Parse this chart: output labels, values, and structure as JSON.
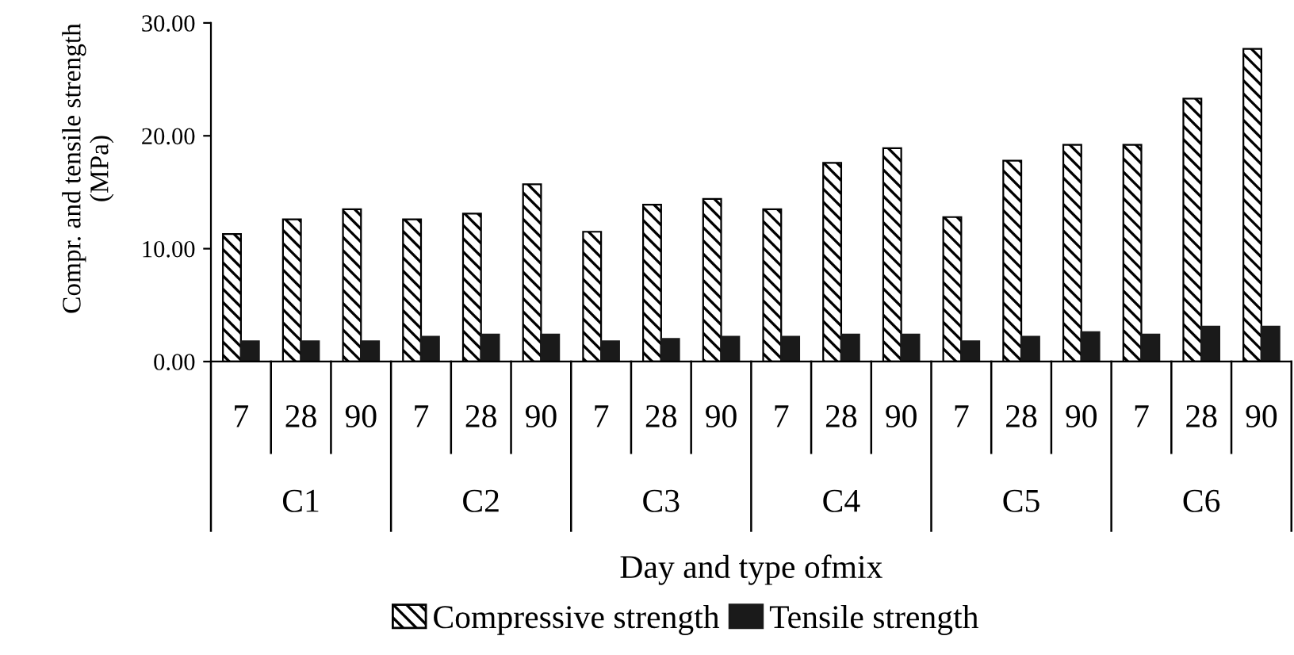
{
  "chart_data": {
    "type": "bar",
    "xlabel": "Day and type ofmix",
    "ylabel": "Compr. and tensile strength\n(MPa)",
    "categories": [
      "7",
      "28",
      "90",
      "7",
      "28",
      "90",
      "7",
      "28",
      "90",
      "7",
      "28",
      "90",
      "7",
      "28",
      "90",
      "7",
      "28",
      "90"
    ],
    "annotations": [
      "C1",
      "C2",
      "C3",
      "C4",
      "C5",
      "C6"
    ],
    "series": [
      {
        "name": "Compressive strength",
        "color": "#000000",
        "values": [
          11.3,
          12.6,
          13.5,
          12.6,
          13.1,
          15.7,
          11.5,
          13.9,
          14.4,
          13.5,
          17.6,
          18.9,
          12.8,
          17.8,
          19.2,
          19.2,
          23.3,
          27.7
        ]
      },
      {
        "name": "Tensile strength",
        "color": "#1a1a1a",
        "values": [
          1.8,
          1.8,
          1.8,
          2.2,
          2.4,
          2.4,
          1.8,
          2.0,
          2.2,
          2.2,
          2.4,
          2.4,
          1.8,
          2.2,
          2.6,
          2.4,
          3.1,
          3.1
        ]
      }
    ],
    "ylim": [
      0,
      30
    ],
    "yticks": [
      {
        "value": 0,
        "label": "0.00"
      },
      {
        "value": 10,
        "label": "10.00"
      },
      {
        "value": 20,
        "label": "20.00"
      },
      {
        "value": 30,
        "label": "30.00"
      }
    ],
    "grid": false,
    "legend": "bottom"
  }
}
